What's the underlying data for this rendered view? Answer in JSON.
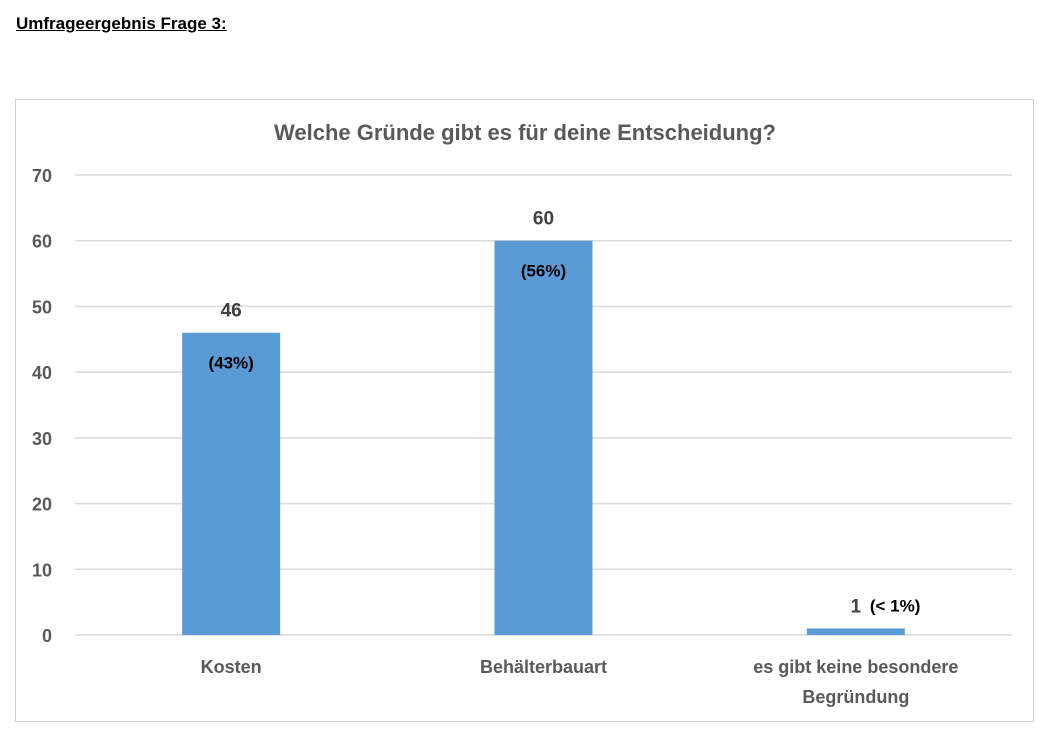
{
  "page": {
    "heading": "Umfrageergebnis Frage 3:"
  },
  "chart_data": {
    "type": "bar",
    "title": "Welche Gründe gibt es für deine Entscheidung?",
    "categories": [
      [
        "Kosten"
      ],
      [
        "Behälterbauart"
      ],
      [
        "es gibt keine besondere",
        "Begründung"
      ]
    ],
    "values": [
      46,
      60,
      1
    ],
    "value_labels": [
      "46",
      "60",
      "1"
    ],
    "percent_labels": [
      "(43%)",
      "(56%)",
      "(< 1%)"
    ],
    "ylim": [
      0,
      70
    ],
    "yticks": [
      0,
      10,
      20,
      30,
      40,
      50,
      60,
      70
    ],
    "grid": true,
    "bar_color": "#5b9bd5",
    "gridline_color": "#d9d9d9"
  }
}
